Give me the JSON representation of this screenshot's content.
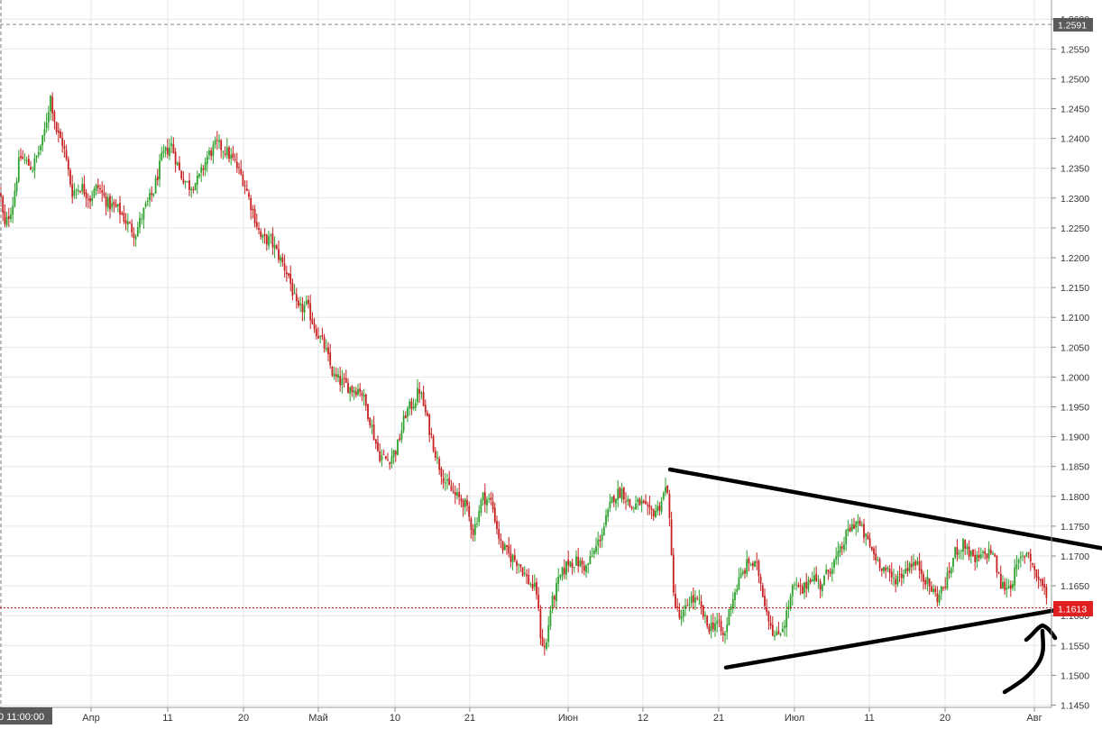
{
  "chart_data": {
    "type": "candlestick",
    "title": "",
    "xlabel": "",
    "ylabel": "",
    "ylim": [
      1.145,
      1.26
    ],
    "y_ticks": [
      "1.1450",
      "1.1500",
      "1.1550",
      "1.1600",
      "1.1650",
      "1.1700",
      "1.1750",
      "1.1800",
      "1.1850",
      "1.1900",
      "1.1950",
      "1.2000",
      "1.2050",
      "1.2100",
      "1.2150",
      "1.2200",
      "1.2250",
      "1.2300",
      "1.2350",
      "1.2400",
      "1.2450",
      "1.2500",
      "1.2550",
      "1.2600"
    ],
    "x_ticks": [
      "Апр",
      "11",
      "20",
      "Май",
      "10",
      "21",
      "Июн",
      "12",
      "21",
      "Июл",
      "11",
      "20",
      "Авг"
    ],
    "cursor_time_label": "0 11:00:00",
    "current_price_label": "1.1613",
    "current_price": 1.1613,
    "crosshair_price_label": "1.2591",
    "crosshair_price": 1.2591,
    "grid": true,
    "colors": {
      "up": "#2ea12e",
      "down": "#c62020",
      "wick": "#555555",
      "price_line": "#cc0000",
      "trendline": "#000000",
      "grid": "#e6e6e6"
    },
    "path": [
      [
        0,
        1.231
      ],
      [
        5,
        1.225
      ],
      [
        14,
        1.229
      ],
      [
        22,
        1.237
      ],
      [
        36,
        1.235
      ],
      [
        48,
        1.24
      ],
      [
        56,
        1.247
      ],
      [
        63,
        1.241
      ],
      [
        70,
        1.239
      ],
      [
        80,
        1.231
      ],
      [
        90,
        1.232
      ],
      [
        100,
        1.23
      ],
      [
        108,
        1.232
      ],
      [
        120,
        1.229
      ],
      [
        132,
        1.228
      ],
      [
        140,
        1.226
      ],
      [
        150,
        1.224
      ],
      [
        160,
        1.228
      ],
      [
        170,
        1.231
      ],
      [
        180,
        1.237
      ],
      [
        190,
        1.239
      ],
      [
        200,
        1.234
      ],
      [
        210,
        1.232
      ],
      [
        220,
        1.233
      ],
      [
        230,
        1.237
      ],
      [
        240,
        1.239
      ],
      [
        250,
        1.238
      ],
      [
        260,
        1.236
      ],
      [
        270,
        1.233
      ],
      [
        280,
        1.228
      ],
      [
        290,
        1.223
      ],
      [
        300,
        1.223
      ],
      [
        310,
        1.22
      ],
      [
        320,
        1.217
      ],
      [
        330,
        1.211
      ],
      [
        340,
        1.212
      ],
      [
        350,
        1.208
      ],
      [
        360,
        1.205
      ],
      [
        370,
        1.2
      ],
      [
        380,
        1.199
      ],
      [
        390,
        1.198
      ],
      [
        400,
        1.198
      ],
      [
        410,
        1.193
      ],
      [
        420,
        1.187
      ],
      [
        430,
        1.186
      ],
      [
        440,
        1.188
      ],
      [
        450,
        1.194
      ],
      [
        460,
        1.196
      ],
      [
        465,
        1.198
      ],
      [
        475,
        1.192
      ],
      [
        485,
        1.186
      ],
      [
        495,
        1.182
      ],
      [
        505,
        1.18
      ],
      [
        515,
        1.179
      ],
      [
        525,
        1.174
      ],
      [
        535,
        1.18
      ],
      [
        545,
        1.179
      ],
      [
        555,
        1.172
      ],
      [
        565,
        1.17
      ],
      [
        575,
        1.169
      ],
      [
        585,
        1.166
      ],
      [
        595,
        1.164
      ],
      [
        600,
        1.156
      ],
      [
        605,
        1.154
      ],
      [
        610,
        1.161
      ],
      [
        620,
        1.166
      ],
      [
        630,
        1.169
      ],
      [
        640,
        1.169
      ],
      [
        650,
        1.168
      ],
      [
        660,
        1.171
      ],
      [
        670,
        1.175
      ],
      [
        680,
        1.18
      ],
      [
        690,
        1.181
      ],
      [
        700,
        1.178
      ],
      [
        710,
        1.179
      ],
      [
        720,
        1.177
      ],
      [
        730,
        1.178
      ],
      [
        740,
        1.182
      ],
      [
        744,
        1.171
      ],
      [
        748,
        1.162
      ],
      [
        755,
        1.159
      ],
      [
        765,
        1.163
      ],
      [
        775,
        1.162
      ],
      [
        785,
        1.158
      ],
      [
        795,
        1.159
      ],
      [
        803,
        1.156
      ],
      [
        810,
        1.162
      ],
      [
        820,
        1.166
      ],
      [
        830,
        1.169
      ],
      [
        840,
        1.168
      ],
      [
        850,
        1.161
      ],
      [
        860,
        1.156
      ],
      [
        870,
        1.159
      ],
      [
        880,
        1.165
      ],
      [
        890,
        1.164
      ],
      [
        900,
        1.167
      ],
      [
        910,
        1.165
      ],
      [
        920,
        1.168
      ],
      [
        930,
        1.17
      ],
      [
        940,
        1.174
      ],
      [
        950,
        1.176
      ],
      [
        960,
        1.173
      ],
      [
        970,
        1.17
      ],
      [
        980,
        1.168
      ],
      [
        990,
        1.166
      ],
      [
        1000,
        1.167
      ],
      [
        1010,
        1.169
      ],
      [
        1020,
        1.168
      ],
      [
        1030,
        1.165
      ],
      [
        1040,
        1.163
      ],
      [
        1050,
        1.166
      ],
      [
        1060,
        1.171
      ],
      [
        1070,
        1.172
      ],
      [
        1080,
        1.169
      ],
      [
        1090,
        1.17
      ],
      [
        1100,
        1.171
      ],
      [
        1110,
        1.165
      ],
      [
        1120,
        1.165
      ],
      [
        1130,
        1.169
      ],
      [
        1140,
        1.171
      ],
      [
        1148,
        1.167
      ],
      [
        1157,
        1.165
      ],
      [
        1162,
        1.1613
      ]
    ],
    "trendlines": [
      {
        "name": "upper",
        "from": [
          743,
          1.1845
        ],
        "to": [
          1222,
          1.1713
        ]
      },
      {
        "name": "lower",
        "from": [
          805,
          1.1513
        ],
        "to": [
          1185,
          1.1613
        ]
      }
    ]
  }
}
